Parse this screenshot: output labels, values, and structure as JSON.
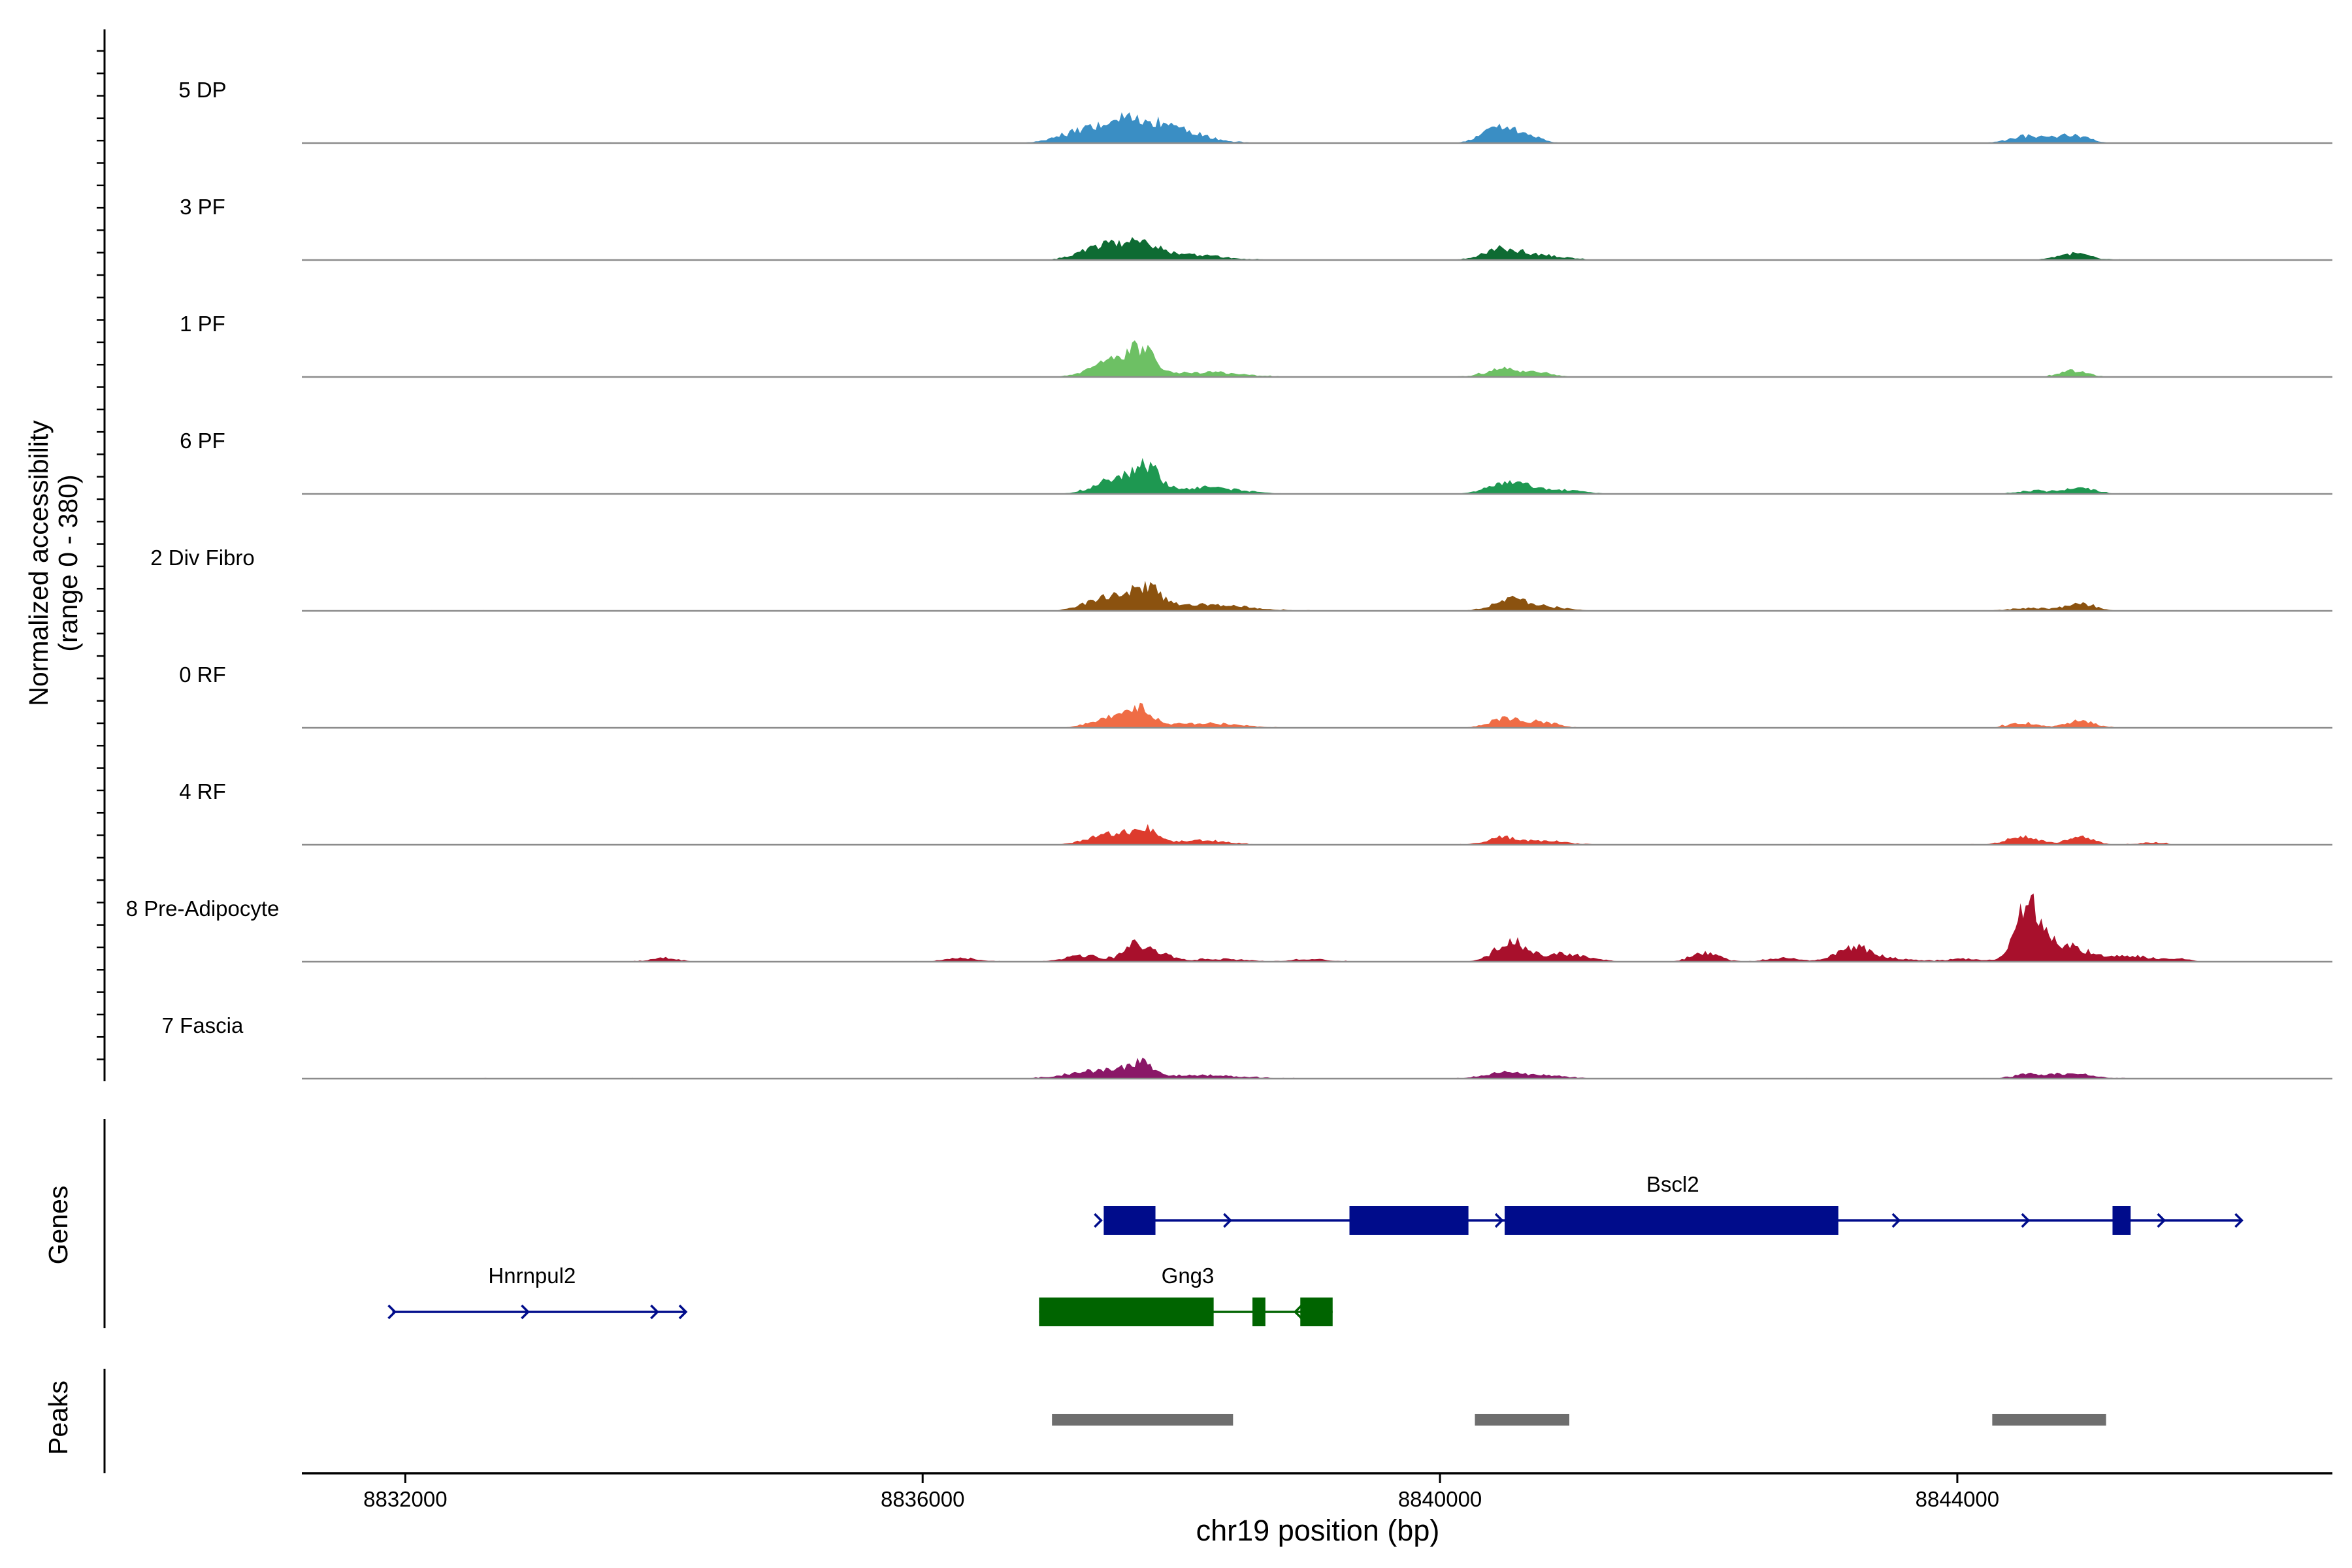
{
  "chart_data": {
    "type": "area",
    "title": "",
    "ylabel_line1": "Normalized accessibility",
    "ylabel_line2": "(range 0 - 380)",
    "xlabel": "chr19 position (bp)",
    "ylim": [
      0,
      380
    ],
    "xlim": [
      8831200,
      8846900
    ],
    "x_ticks": [
      8832000,
      8836000,
      8840000,
      8844000
    ],
    "x_tick_labels": [
      "8832000",
      "8836000",
      "8840000",
      "8844000"
    ],
    "baseline_color": "#8c8c8c",
    "tracks": [
      {
        "name": "5 DP",
        "color": "#3a8ec4",
        "peaks": [
          [
            8837650,
            85,
            270
          ],
          [
            8837200,
            25,
            170
          ],
          [
            8838100,
            15,
            180
          ],
          [
            8840480,
            57,
            140
          ],
          [
            8840750,
            12,
            80
          ],
          [
            8844550,
            25,
            140
          ],
          [
            8844900,
            28,
            110
          ]
        ]
      },
      {
        "name": "3 PF",
        "color": "#0e6b33",
        "peaks": [
          [
            8837400,
            55,
            160
          ],
          [
            8837720,
            55,
            120
          ],
          [
            8838100,
            18,
            230
          ],
          [
            8840500,
            42,
            140
          ],
          [
            8840850,
            14,
            150
          ],
          [
            8844900,
            22,
            130
          ]
        ]
      },
      {
        "name": "1 PF",
        "color": "#6dc064",
        "peaks": [
          [
            8837500,
            65,
            170
          ],
          [
            8837700,
            70,
            90
          ],
          [
            8838200,
            16,
            260
          ],
          [
            8840500,
            28,
            140
          ],
          [
            8840800,
            12,
            100
          ],
          [
            8844900,
            22,
            110
          ]
        ]
      },
      {
        "name": "6 PF",
        "color": "#1e9851",
        "peaks": [
          [
            8837550,
            65,
            180
          ],
          [
            8837750,
            60,
            80
          ],
          [
            8838200,
            22,
            260
          ],
          [
            8840540,
            45,
            150
          ],
          [
            8840950,
            14,
            150
          ],
          [
            8844600,
            12,
            120
          ],
          [
            8844950,
            22,
            110
          ]
        ]
      },
      {
        "name": "2 Div Fibro",
        "color": "#8b520f",
        "peaks": [
          [
            8837500,
            60,
            180
          ],
          [
            8837750,
            55,
            100
          ],
          [
            8838200,
            22,
            300
          ],
          [
            8840550,
            38,
            140
          ],
          [
            8840850,
            12,
            150
          ],
          [
            8844950,
            25,
            120
          ],
          [
            8844550,
            10,
            150
          ]
        ]
      },
      {
        "name": "0 RF",
        "color": "#ef6c45",
        "peaks": [
          [
            8837500,
            38,
            160
          ],
          [
            8837700,
            48,
            90
          ],
          [
            8838200,
            16,
            250
          ],
          [
            8840500,
            33,
            120
          ],
          [
            8840800,
            20,
            110
          ],
          [
            8844500,
            18,
            110
          ],
          [
            8844950,
            25,
            110
          ]
        ]
      },
      {
        "name": "4 RF",
        "color": "#dd3b2d",
        "peaks": [
          [
            8837450,
            38,
            160
          ],
          [
            8837720,
            48,
            100
          ],
          [
            8838150,
            16,
            200
          ],
          [
            8840500,
            25,
            130
          ],
          [
            8840850,
            12,
            150
          ],
          [
            8844500,
            28,
            120
          ],
          [
            8844950,
            25,
            110
          ],
          [
            8845500,
            8,
            100
          ]
        ]
      },
      {
        "name": "8 Pre-Adipocyte",
        "color": "#a8102c",
        "peaks": [
          [
            8834000,
            14,
            100
          ],
          [
            8836300,
            12,
            120
          ],
          [
            8837250,
            22,
            140
          ],
          [
            8837650,
            60,
            90
          ],
          [
            8837850,
            25,
            90
          ],
          [
            8838300,
            10,
            200
          ],
          [
            8839000,
            8,
            150
          ],
          [
            8840550,
            70,
            120
          ],
          [
            8840900,
            22,
            150
          ],
          [
            8841100,
            10,
            150
          ],
          [
            8842050,
            30,
            110
          ],
          [
            8842650,
            14,
            120
          ],
          [
            8843200,
            50,
            130
          ],
          [
            8843500,
            10,
            150
          ],
          [
            8844050,
            10,
            150
          ],
          [
            8844550,
            195,
            90
          ],
          [
            8844800,
            60,
            200
          ],
          [
            8845350,
            20,
            150
          ],
          [
            8845700,
            10,
            100
          ]
        ]
      },
      {
        "name": "7 Fascia",
        "color": "#8a1767",
        "peaks": [
          [
            8837400,
            30,
            240
          ],
          [
            8837680,
            42,
            90
          ],
          [
            8838200,
            12,
            280
          ],
          [
            8840500,
            22,
            150
          ],
          [
            8840850,
            10,
            150
          ],
          [
            8844550,
            15,
            120
          ],
          [
            8844900,
            18,
            150
          ]
        ]
      }
    ],
    "genes_label": "Genes",
    "genes": [
      {
        "name": "Bscl2",
        "strand": "+",
        "color": "#000c8b",
        "row": 0,
        "start": 8837400,
        "end": 8846200,
        "exons": [
          [
            8837400,
            8837800
          ],
          [
            8839300,
            8840220
          ],
          [
            8840500,
            8843080
          ],
          [
            8845200,
            8845340
          ]
        ],
        "arrows": [
          8837380,
          8838380,
          8840480,
          8843550,
          8844550,
          8845600,
          8846200
        ],
        "label_pos": 8841800
      },
      {
        "name": "Hnrnpul2",
        "strand": "+",
        "color": "#000c8b",
        "row": 1,
        "start": 8831900,
        "end": 8834170,
        "exons": [],
        "arrows": [
          8831920,
          8832950,
          8833950,
          8834170
        ],
        "label_pos": 8832980
      },
      {
        "name": "Gng3",
        "strand": "-",
        "color": "#006400",
        "row": 1,
        "start": 8836900,
        "end": 8839170,
        "exons": [
          [
            8836900,
            8838250
          ],
          [
            8838550,
            8838650
          ],
          [
            8838920,
            8839170
          ]
        ],
        "arrows": [
          8838880
        ],
        "label_pos": 8838050
      }
    ],
    "peaks_label": "Peaks",
    "peak_color": "#6e6e6e",
    "peak_regions": [
      [
        8837000,
        8838400
      ],
      [
        8840270,
        8841000
      ],
      [
        8844270,
        8845150
      ]
    ]
  }
}
